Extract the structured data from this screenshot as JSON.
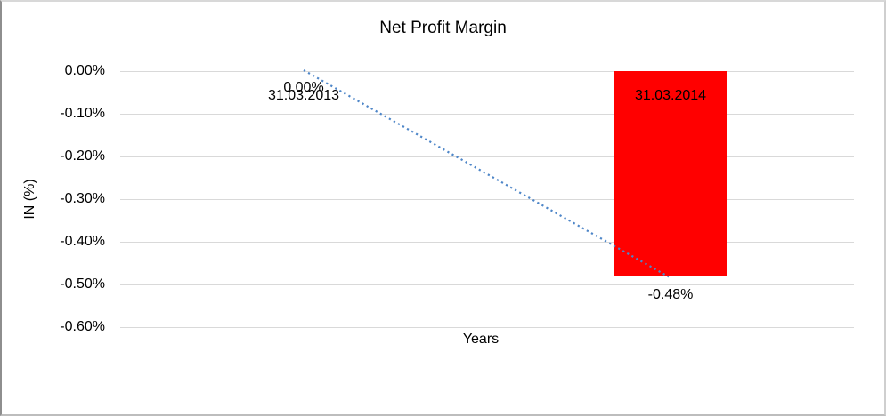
{
  "chart_data": {
    "type": "bar",
    "title": "Net Profit Margin",
    "xlabel": "Years",
    "ylabel": "IN (%)",
    "categories": [
      "31.03.2013",
      "31.03.2014"
    ],
    "series": [
      {
        "name": "Net Profit Margin",
        "values": [
          0.0,
          -0.48
        ]
      }
    ],
    "data_labels": [
      "0.00%",
      "-0.48%"
    ],
    "y_tick_values": [
      0.0,
      -0.1,
      -0.2,
      -0.3,
      -0.4,
      -0.5,
      -0.6
    ],
    "y_tick_labels": [
      "0.00%",
      "-0.10%",
      "-0.20%",
      "-0.30%",
      "-0.40%",
      "-0.50%",
      "-0.60%"
    ],
    "ylim": [
      0.0,
      -0.6
    ],
    "grid": true,
    "legend": "none",
    "trendline": {
      "style": "dotted",
      "categories": [
        "31.03.2013",
        "31.03.2014"
      ],
      "y": [
        0.0,
        -0.48
      ]
    },
    "colors": {
      "bar": "#FF0000",
      "trendline": "#4E86C8",
      "gridline": "#D9D9D9",
      "text": "#000000"
    }
  }
}
